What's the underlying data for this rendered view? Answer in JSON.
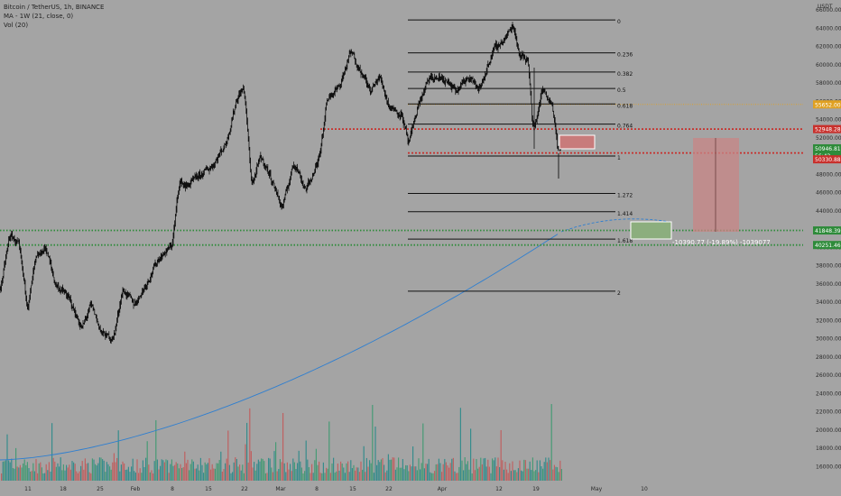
{
  "symbol_header": {
    "title": "Bitcoin / TetherUS, 1h, BINANCE",
    "ma_label": "MA - 1W (21, close, 0)",
    "vol_label": "Vol (20)"
  },
  "price_axis": {
    "currency": "USDT",
    "ticks": [
      "66000.00",
      "64000.00",
      "62000.00",
      "60000.00",
      "58000.00",
      "56000.00",
      "54000.00",
      "52000.00",
      "50000.00",
      "48000.00",
      "46000.00",
      "44000.00",
      "42000.00",
      "40000.00",
      "38000.00",
      "36000.00",
      "34000.00",
      "32000.00",
      "30000.00",
      "28000.00",
      "26000.00",
      "24000.00",
      "22000.00",
      "20000.00",
      "18000.00",
      "16000.00"
    ]
  },
  "time_axis": {
    "labels": [
      "11",
      "18",
      "25",
      "Feb",
      "8",
      "15",
      "22",
      "Mar",
      "8",
      "15",
      "22",
      "Apr",
      "12",
      "19",
      "May",
      "10"
    ]
  },
  "price_tags": {
    "orange": "55652.00",
    "red_top": "52948.28",
    "current": "50946.81",
    "countdown": "56:42",
    "red_low": "50330.88",
    "green_top": "41848.39",
    "green_low": "40251.46"
  },
  "fib_levels": [
    "0",
    "0.236",
    "0.382",
    "0.5",
    "0.618",
    "0.764",
    "1",
    "1.272",
    "1.414",
    "1.618",
    "2"
  ],
  "measure_label": "-10390.77 (-19.89%) -1039077",
  "colors": {
    "background": "#a4a4a4",
    "candle": "#111111",
    "ma_line": "#2f7fd0",
    "red_line": "#c8302c",
    "green_line": "#2e8b3a",
    "orange_line": "#e0a020",
    "vol_red": "#c25a5a",
    "vol_green": "#3d9970",
    "vol_teal": "#2a8a8a"
  },
  "chart_data": {
    "type": "candlestick",
    "interval": "1h",
    "ylim": [
      15000,
      67000
    ],
    "fib_price_levels": [
      {
        "ratio": "0",
        "price": 64900
      },
      {
        "ratio": "0.236",
        "price": 61300
      },
      {
        "ratio": "0.382",
        "price": 59200
      },
      {
        "ratio": "0.5",
        "price": 57400
      },
      {
        "ratio": "0.618",
        "price": 55700
      },
      {
        "ratio": "0.764",
        "price": 53500
      },
      {
        "ratio": "1",
        "price": 50000
      },
      {
        "ratio": "1.272",
        "price": 45900
      },
      {
        "ratio": "1.414",
        "price": 43900
      },
      {
        "ratio": "1.618",
        "price": 40900
      },
      {
        "ratio": "2",
        "price": 35200
      }
    ],
    "horizontal_lines": [
      {
        "price": 55652.0,
        "style": "orange-dotted"
      },
      {
        "price": 52948.28,
        "style": "red-dotted"
      },
      {
        "price": 50330.88,
        "style": "red-dotted"
      },
      {
        "price": 41848.39,
        "style": "green-dotted"
      },
      {
        "price": 40251.46,
        "style": "green-dotted"
      }
    ],
    "price_path": [
      [
        0,
        35500
      ],
      [
        10,
        41500
      ],
      [
        20,
        40200
      ],
      [
        30,
        33200
      ],
      [
        38,
        38500
      ],
      [
        50,
        40100
      ],
      [
        60,
        36000
      ],
      [
        75,
        34500
      ],
      [
        90,
        31000
      ],
      [
        100,
        33800
      ],
      [
        112,
        30500
      ],
      [
        125,
        30000
      ],
      [
        135,
        35500
      ],
      [
        148,
        33700
      ],
      [
        160,
        35800
      ],
      [
        175,
        38800
      ],
      [
        190,
        40200
      ],
      [
        198,
        47500
      ],
      [
        205,
        46600
      ],
      [
        220,
        47800
      ],
      [
        235,
        49000
      ],
      [
        250,
        51500
      ],
      [
        262,
        56500
      ],
      [
        270,
        57500
      ],
      [
        278,
        46500
      ],
      [
        288,
        50000
      ],
      [
        300,
        47500
      ],
      [
        312,
        44200
      ],
      [
        325,
        49500
      ],
      [
        338,
        46200
      ],
      [
        352,
        49400
      ],
      [
        362,
        56500
      ],
      [
        375,
        57500
      ],
      [
        388,
        61500
      ],
      [
        398,
        59500
      ],
      [
        410,
        57000
      ],
      [
        420,
        58800
      ],
      [
        430,
        55500
      ],
      [
        445,
        54500
      ],
      [
        452,
        51000
      ],
      [
        462,
        55500
      ],
      [
        475,
        58500
      ],
      [
        490,
        58500
      ],
      [
        505,
        57000
      ],
      [
        520,
        59000
      ],
      [
        530,
        57000
      ],
      [
        545,
        61500
      ],
      [
        560,
        63000
      ],
      [
        568,
        64500
      ],
      [
        575,
        61000
      ],
      [
        585,
        60500
      ],
      [
        590,
        52000
      ],
      [
        600,
        57500
      ],
      [
        612,
        55500
      ],
      [
        618,
        50000
      ],
      [
        622,
        51200
      ]
    ]
  }
}
